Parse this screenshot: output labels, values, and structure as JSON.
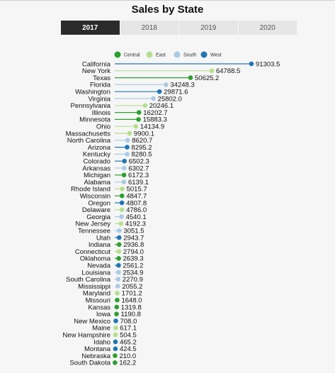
{
  "title": "Sales by State",
  "tabs": [
    {
      "label": "2017",
      "active": true
    },
    {
      "label": "2018",
      "active": false
    },
    {
      "label": "2019",
      "active": false
    },
    {
      "label": "2020",
      "active": false
    }
  ],
  "colors": {
    "Central": "#2ca02c",
    "East": "#b5df8e",
    "South": "#a9cbe6",
    "West": "#1f77b4"
  },
  "chart_data": {
    "type": "lollipop",
    "title": "Sales by State",
    "legend": [
      "Central",
      "East",
      "South",
      "West"
    ],
    "legend_position": "top",
    "xlim": [
      0,
      91303.5
    ],
    "data": [
      {
        "state": "California",
        "value": 91303.5,
        "label": "91303.5",
        "region": "West"
      },
      {
        "state": "New York",
        "value": 64788.5,
        "label": "64788.5",
        "region": "East"
      },
      {
        "state": "Texas",
        "value": 50625.2,
        "label": "50625.2",
        "region": "Central"
      },
      {
        "state": "Florida",
        "value": 34248.3,
        "label": "34248.3",
        "region": "South"
      },
      {
        "state": "Washington",
        "value": 29871.6,
        "label": "29871.6",
        "region": "West"
      },
      {
        "state": "Virginia",
        "value": 25802.0,
        "label": "25802.0",
        "region": "South"
      },
      {
        "state": "Pennsylvania",
        "value": 20246.1,
        "label": "20246.1",
        "region": "East"
      },
      {
        "state": "Illinois",
        "value": 16202.7,
        "label": "16202.7",
        "region": "Central"
      },
      {
        "state": "Minnesota",
        "value": 15883.3,
        "label": "15883.3",
        "region": "Central"
      },
      {
        "state": "Ohio",
        "value": 14134.9,
        "label": "14134.9",
        "region": "East"
      },
      {
        "state": "Massachusetts",
        "value": 9900.1,
        "label": "9900.1",
        "region": "East"
      },
      {
        "state": "North Carolina",
        "value": 8620.7,
        "label": "8620.7",
        "region": "South"
      },
      {
        "state": "Arizona",
        "value": 8295.2,
        "label": "8295.2",
        "region": "West"
      },
      {
        "state": "Kentucky",
        "value": 8280.5,
        "label": "8280.5",
        "region": "South"
      },
      {
        "state": "Colorado",
        "value": 6502.3,
        "label": "6502.3",
        "region": "West"
      },
      {
        "state": "Arkansas",
        "value": 6302.7,
        "label": "6302.7",
        "region": "South"
      },
      {
        "state": "Michigan",
        "value": 6172.3,
        "label": "6172.3",
        "region": "Central"
      },
      {
        "state": "Alabama",
        "value": 6139.1,
        "label": "6139.1",
        "region": "South"
      },
      {
        "state": "Rhode Island",
        "value": 5015.7,
        "label": "5015.7",
        "region": "East"
      },
      {
        "state": "Wisconsin",
        "value": 4847.7,
        "label": "4847.7",
        "region": "Central"
      },
      {
        "state": "Oregon",
        "value": 4807.8,
        "label": "4807.8",
        "region": "West"
      },
      {
        "state": "Delaware",
        "value": 4786.0,
        "label": "4786.0",
        "region": "East"
      },
      {
        "state": "Georgia",
        "value": 4540.1,
        "label": "4540.1",
        "region": "South"
      },
      {
        "state": "New Jersey",
        "value": 4192.3,
        "label": "4192.3",
        "region": "East"
      },
      {
        "state": "Tennessee",
        "value": 3051.5,
        "label": "3051.5",
        "region": "South"
      },
      {
        "state": "Utah",
        "value": 2943.7,
        "label": "2943.7",
        "region": "West"
      },
      {
        "state": "Indiana",
        "value": 2936.8,
        "label": "2936.8",
        "region": "Central"
      },
      {
        "state": "Connecticut",
        "value": 2794.0,
        "label": "2794.0",
        "region": "East"
      },
      {
        "state": "Oklahoma",
        "value": 2639.3,
        "label": "2639.3",
        "region": "Central"
      },
      {
        "state": "Nevada",
        "value": 2561.2,
        "label": "2561.2",
        "region": "West"
      },
      {
        "state": "Louisiana",
        "value": 2534.9,
        "label": "2534.9",
        "region": "South"
      },
      {
        "state": "South Carolina",
        "value": 2270.9,
        "label": "2270.9",
        "region": "South"
      },
      {
        "state": "Mississippi",
        "value": 2055.2,
        "label": "2055.2",
        "region": "South"
      },
      {
        "state": "Maryland",
        "value": 1701.2,
        "label": "1701.2",
        "region": "East"
      },
      {
        "state": "Missouri",
        "value": 1648.0,
        "label": "1648.0",
        "region": "Central"
      },
      {
        "state": "Kansas",
        "value": 1319.8,
        "label": "1319.8",
        "region": "Central"
      },
      {
        "state": "Iowa",
        "value": 1190.8,
        "label": "1190.8",
        "region": "Central"
      },
      {
        "state": "New Mexico",
        "value": 708.0,
        "label": "708.0",
        "region": "West"
      },
      {
        "state": "Maine",
        "value": 617.1,
        "label": "617.1",
        "region": "East"
      },
      {
        "state": "New Hampshire",
        "value": 504.5,
        "label": "504.5",
        "region": "East"
      },
      {
        "state": "Idaho",
        "value": 465.2,
        "label": "465.2",
        "region": "West"
      },
      {
        "state": "Montana",
        "value": 424.5,
        "label": "424.5",
        "region": "West"
      },
      {
        "state": "Nebraska",
        "value": 210.0,
        "label": "210.0",
        "region": "Central"
      },
      {
        "state": "South Dakota",
        "value": 162.2,
        "label": "162.2",
        "region": "Central"
      }
    ]
  }
}
